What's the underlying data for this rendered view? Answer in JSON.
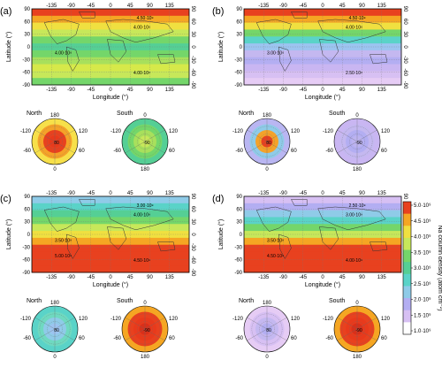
{
  "panels": [
    {
      "label": "(a)",
      "map": {
        "xlabel": "Longitude (°)",
        "ylabel": "Latitude (°)",
        "top_ticks": [
          "-135",
          "-90",
          "-45",
          "0",
          "45",
          "90",
          "135"
        ],
        "bottom_ticks": [
          "-135",
          "-90",
          "-45",
          "0",
          "45",
          "90",
          "135"
        ],
        "left_ticks": [
          "90",
          "60",
          "30",
          "0",
          "-30",
          "-60",
          "-90"
        ],
        "right_ticks": [
          "90",
          "60",
          "30",
          "0",
          "-30",
          "-60",
          "-90"
        ],
        "contour_labels": [
          "4.50·10⁹",
          "4.00·10⁹",
          "4.00·10⁹",
          "4.00·10⁹"
        ],
        "bands": [
          "#e8411f",
          "#f5a623",
          "#f0e040",
          "#c7e85a",
          "#74d66a",
          "#55cf95",
          "#74d66a",
          "#a8e05c",
          "#d6e94a",
          "#c7e85a",
          "#74d66a"
        ]
      },
      "north": {
        "title": "North",
        "top": "180",
        "bottom": "0",
        "left_upper": "-120",
        "left_lower": "-60",
        "right_upper": "120",
        "right_lower": "60",
        "center_label": "80",
        "rings": [
          "#f7e04a",
          "#f4a229",
          "#e8411f",
          "#e83a1c"
        ]
      },
      "south": {
        "title": "South",
        "top": "0",
        "bottom": "180",
        "left_upper": "-120",
        "left_lower": "-60",
        "right_upper": "120",
        "right_lower": "60",
        "center_label": "-90",
        "rings": [
          "#55cf95",
          "#74d66a",
          "#a8e05c",
          "#c7e85a"
        ]
      }
    },
    {
      "label": "(b)",
      "map": {
        "xlabel": "Longitude (°)",
        "ylabel": "Latitude (°)",
        "top_ticks": [
          "-135",
          "-90",
          "-45",
          "0",
          "45",
          "90",
          "135"
        ],
        "bottom_ticks": [
          "-135",
          "-90",
          "-45",
          "0",
          "45",
          "90",
          "135"
        ],
        "left_ticks": [
          "90",
          "60",
          "30",
          "0",
          "-30",
          "-60",
          "-90"
        ],
        "right_ticks": [
          "90",
          "60",
          "30",
          "0",
          "-30",
          "-60",
          "-90"
        ],
        "contour_labels": [
          "4.50·10⁹",
          "4.00·10⁹",
          "3.00·10⁹",
          "2.50·10⁹"
        ],
        "bands": [
          "#e8411f",
          "#f5a623",
          "#f0e040",
          "#74d66a",
          "#5ad3c8",
          "#9cc4f0",
          "#c4b8f0",
          "#b3aef2",
          "#c9b6f2",
          "#d7c0f3",
          "#e6ccf5"
        ]
      },
      "north": {
        "title": "North",
        "top": "180",
        "bottom": "0",
        "left_upper": "-120",
        "left_lower": "-60",
        "right_upper": "120",
        "right_lower": "60",
        "center_label": "80",
        "rings": [
          "#b9b6f2",
          "#8fcbe8",
          "#f4a229",
          "#e8411f"
        ]
      },
      "south": {
        "title": "South",
        "top": "0",
        "bottom": "180",
        "left_upper": "-120",
        "left_lower": "-60",
        "right_upper": "120",
        "right_lower": "60",
        "center_label": "-90",
        "rings": [
          "#c9b6f2",
          "#c4b8f0",
          "#b3aef2",
          "#bcb3f0"
        ]
      }
    },
    {
      "label": "(c)",
      "map": {
        "xlabel": "Longitude (°)",
        "ylabel": "Latitude (°)",
        "top_ticks": [
          "-135",
          "-90",
          "-45",
          "0",
          "45",
          "90",
          "135"
        ],
        "bottom_ticks": [
          "-135",
          "-90",
          "-45",
          "0",
          "45",
          "90",
          "135"
        ],
        "left_ticks": [
          "90",
          "60",
          "30",
          "0",
          "-30",
          "-60",
          "-90"
        ],
        "right_ticks": [
          "90",
          "60",
          "30",
          "0",
          "-30",
          "-60",
          "-90"
        ],
        "contour_labels": [
          "3.00·10⁹",
          "4.00·10⁹",
          "3.50·10⁹",
          "4.50·10⁹",
          "5.00·10⁹"
        ],
        "bands": [
          "#8fcbe8",
          "#5ad3c8",
          "#55cf95",
          "#74d66a",
          "#c7e85a",
          "#f0e040",
          "#f5a623",
          "#e8411f",
          "#e8411f",
          "#e8411f",
          "#e8411f"
        ]
      },
      "north": {
        "title": "North",
        "top": "180",
        "bottom": "0",
        "left_upper": "-120",
        "left_lower": "-60",
        "right_upper": "120",
        "right_lower": "60",
        "center_label": "80",
        "rings": [
          "#5ad3c8",
          "#6fd9c0",
          "#8fcbe8",
          "#9cc4f0"
        ]
      },
      "south": {
        "title": "South",
        "top": "0",
        "bottom": "180",
        "left_upper": "-120",
        "left_lower": "-60",
        "right_upper": "120",
        "right_lower": "60",
        "center_label": "-90",
        "rings": [
          "#f5a623",
          "#e8411f",
          "#e83a1c",
          "#d8301a"
        ]
      }
    },
    {
      "label": "(d)",
      "map": {
        "xlabel": "Longitude (°)",
        "ylabel": "Latitude (°)",
        "top_ticks": [
          "-135",
          "-90",
          "-45",
          "0",
          "45",
          "90",
          "135"
        ],
        "bottom_ticks": [
          "-135",
          "-90",
          "-45",
          "0",
          "45",
          "90",
          "135"
        ],
        "left_ticks": [
          "90",
          "60",
          "30",
          "0",
          "-30",
          "-60",
          "-90"
        ],
        "right_ticks": [
          "90",
          "60",
          "30",
          "0",
          "-30",
          "-60",
          "-90"
        ],
        "contour_labels": [
          "2.50·10⁹",
          "3.00·10⁹",
          "3.50·10⁹",
          "4.00·10⁹",
          "4.50·10⁹"
        ],
        "bands": [
          "#d7c0f3",
          "#b3aef2",
          "#8fcbe8",
          "#5ad3c8",
          "#74d66a",
          "#c7e85a",
          "#f5a623",
          "#e8411f",
          "#e8411f",
          "#e8411f",
          "#e8411f"
        ]
      },
      "north": {
        "title": "North",
        "top": "180",
        "bottom": "0",
        "left_upper": "-120",
        "left_lower": "-60",
        "right_upper": "120",
        "right_lower": "60",
        "center_label": "80",
        "rings": [
          "#e6ccf5",
          "#d7c0f3",
          "#c4b8f0",
          "#b3aef2"
        ]
      },
      "south": {
        "title": "South",
        "top": "0",
        "bottom": "180",
        "left_upper": "-120",
        "left_lower": "-60",
        "right_upper": "120",
        "right_lower": "60",
        "center_label": "-90",
        "rings": [
          "#f5a623",
          "#e8411f",
          "#e83a1c",
          "#d8301a"
        ]
      }
    }
  ],
  "colorbar": {
    "title": "Na column density (atom cm⁻²)",
    "ticks": [
      "5.0·10⁹",
      "4.5·10⁹",
      "4.0·10⁹",
      "3.5·10⁹",
      "3.0·10⁹",
      "2.5·10⁹",
      "2.0·10⁹",
      "1.5·10⁹",
      "1.0·10⁹"
    ],
    "colors": [
      "#e8411f",
      "#f5a623",
      "#f0e040",
      "#c7e85a",
      "#74d66a",
      "#55cf95",
      "#5ad3c8",
      "#8fcbe8",
      "#b3aef2",
      "#d7c0f3",
      "#ffffff"
    ]
  }
}
